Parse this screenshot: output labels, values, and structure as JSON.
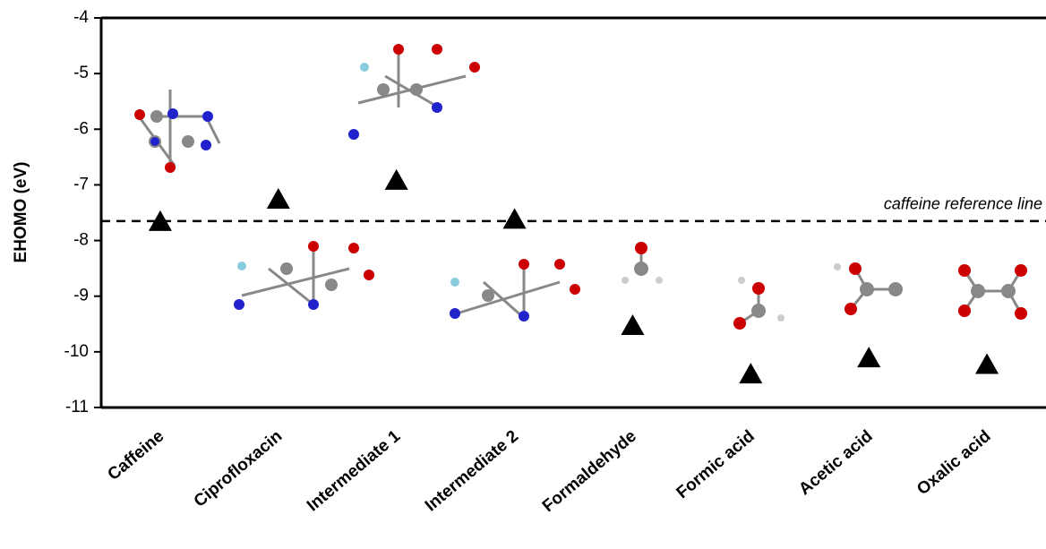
{
  "chart_data": {
    "type": "scatter",
    "y_label": "EHOMO (eV)",
    "categories": [
      "Caffeine",
      "Ciprofloxacin",
      "Intermediate 1",
      "Intermediate 2",
      "Formaldehyde",
      "Formic acid",
      "Acetic acid",
      "Oxalic acid"
    ],
    "values": [
      -7.65,
      -7.25,
      -6.91,
      -7.61,
      -9.52,
      -10.39,
      -10.1,
      -10.22
    ],
    "color": "#000000",
    "marker": "triangle",
    "ylim": [
      -11,
      -4
    ],
    "yticks": [
      -11,
      -10,
      -9,
      -8,
      -7,
      -6,
      -5,
      -4
    ],
    "reference_line": {
      "value": -7.65,
      "label": "caffeine reference line"
    }
  }
}
